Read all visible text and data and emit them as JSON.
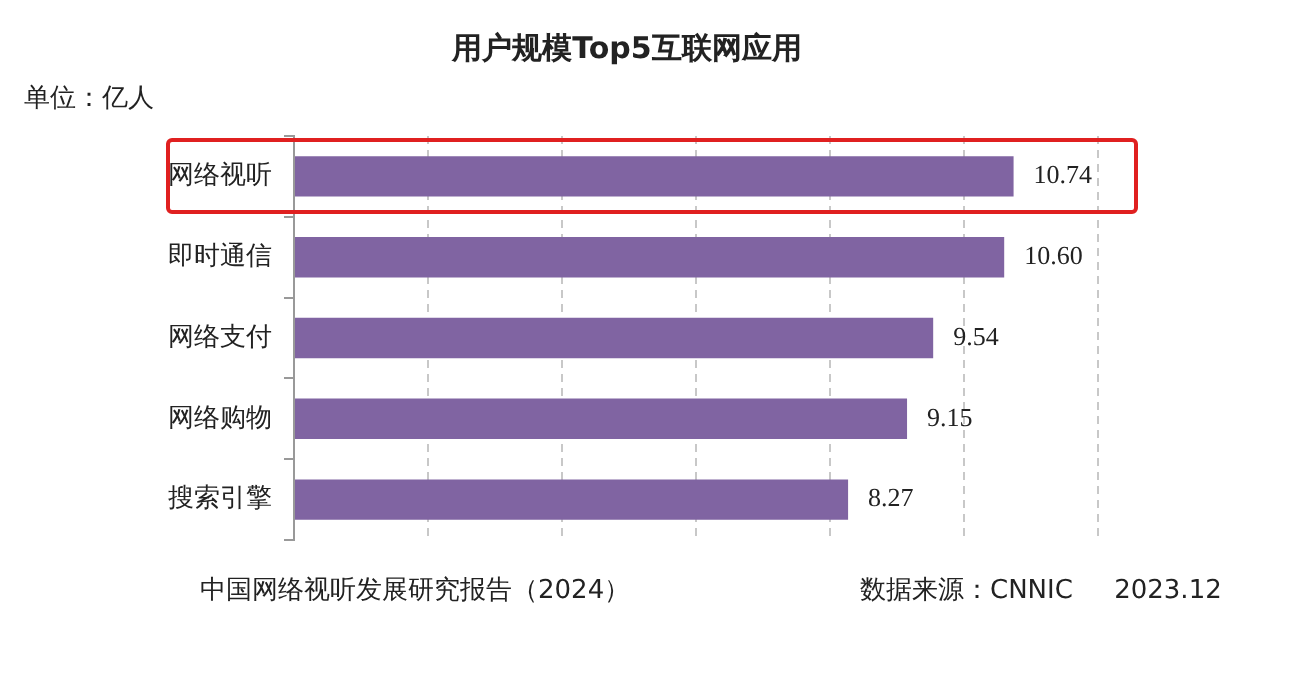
{
  "chart_data": {
    "type": "bar",
    "orientation": "horizontal",
    "title": "用户规模Top5互联网应用",
    "categories": [
      "网络视听",
      "即时通信",
      "网络支付",
      "网络购物",
      "搜索引擎"
    ],
    "values": [
      10.74,
      10.6,
      9.54,
      9.15,
      8.27
    ],
    "color": "#8064a2",
    "xlim": [
      0,
      12
    ],
    "xticks": [
      {
        "value": 0,
        "label": null
      },
      {
        "value": 2,
        "label": null
      },
      {
        "value": 4,
        "label": null
      },
      {
        "value": 6,
        "label": null
      },
      {
        "value": 8,
        "label": null
      },
      {
        "value": 10,
        "label": null
      },
      {
        "value": 12,
        "label": null
      }
    ],
    "value_labels": [
      "10.74",
      "10.60",
      "9.54",
      "9.15",
      "8.27"
    ],
    "grid": "x",
    "tick_labels": "y",
    "legend": false,
    "annotations": [
      "单位：亿人",
      "中国网络视听发展研究报告（2024）",
      "数据来源：CNNIC     2023.12"
    ]
  }
}
